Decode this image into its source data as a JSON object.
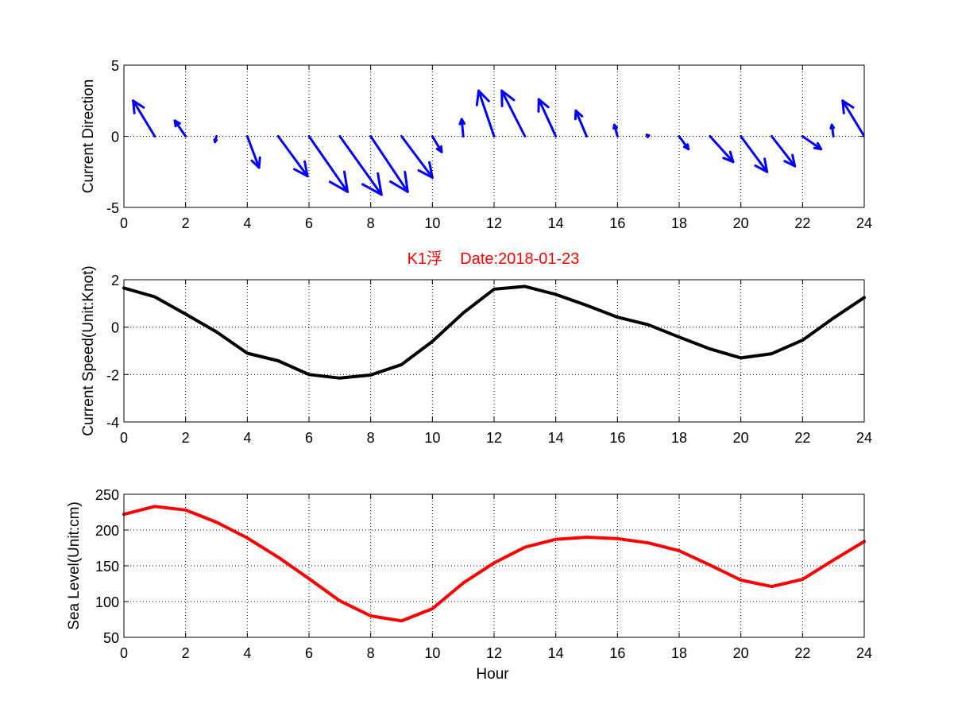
{
  "chart_data": [
    {
      "type": "quiver",
      "ylabel": "Current Direction",
      "xlim": [
        0,
        24
      ],
      "ylim": [
        -5,
        5
      ],
      "xticks": [
        0,
        2,
        4,
        6,
        8,
        10,
        12,
        14,
        16,
        18,
        20,
        22,
        24
      ],
      "yticks": [
        -5,
        0,
        5
      ],
      "grid": true,
      "color": "#0000ff",
      "x": [
        1,
        2,
        3,
        4,
        5,
        6,
        7,
        8,
        9,
        10,
        11,
        12,
        13,
        14,
        15,
        16,
        17,
        18,
        19,
        20,
        21,
        22,
        23,
        24
      ],
      "u": [
        -0.7,
        -0.35,
        -0.05,
        0.38,
        0.95,
        1.25,
        1.35,
        1.2,
        1.0,
        0.3,
        -0.05,
        -0.5,
        -0.75,
        -0.55,
        -0.35,
        -0.1,
        -0.05,
        0.3,
        0.75,
        0.85,
        0.75,
        0.6,
        -0.05,
        -0.7
      ],
      "v": [
        2.5,
        1.1,
        -0.4,
        -2.2,
        -2.8,
        -3.9,
        -4.1,
        -3.9,
        -2.9,
        -1.1,
        1.2,
        3.2,
        3.2,
        2.6,
        1.8,
        0.8,
        0.1,
        -0.9,
        -1.8,
        -2.5,
        -2.1,
        -0.9,
        0.8,
        2.5
      ]
    },
    {
      "type": "line",
      "title": "K1浮    Date:2018-01-23",
      "ylabel": "Current Speed(Unit:Knot)",
      "xlim": [
        0,
        24
      ],
      "ylim": [
        -4,
        2
      ],
      "xticks": [
        0,
        2,
        4,
        6,
        8,
        10,
        12,
        14,
        16,
        18,
        20,
        22,
        24
      ],
      "yticks": [
        -4,
        -2,
        0,
        2
      ],
      "grid": true,
      "color": "#000000",
      "x": [
        0,
        1,
        2,
        3,
        4,
        5,
        6,
        7,
        8,
        9,
        10,
        11,
        12,
        13,
        14,
        15,
        16,
        17,
        18,
        19,
        20,
        21,
        22,
        23,
        24
      ],
      "y": [
        1.65,
        1.28,
        0.55,
        -0.2,
        -1.1,
        -1.42,
        -2.0,
        -2.15,
        -2.02,
        -1.58,
        -0.6,
        0.6,
        1.6,
        1.72,
        1.38,
        0.92,
        0.42,
        0.1,
        -0.42,
        -0.92,
        -1.3,
        -1.12,
        -0.55,
        0.38,
        1.25
      ]
    },
    {
      "type": "line",
      "ylabel": "Sea Level(Unit:cm)",
      "xlabel": "Hour",
      "xlim": [
        0,
        24
      ],
      "ylim": [
        50,
        250
      ],
      "xticks": [
        0,
        2,
        4,
        6,
        8,
        10,
        12,
        14,
        16,
        18,
        20,
        22,
        24
      ],
      "yticks": [
        50,
        100,
        150,
        200,
        250
      ],
      "grid": true,
      "color": "#ff0000",
      "x": [
        0,
        1,
        2,
        3,
        4,
        5,
        6,
        7,
        8,
        9,
        10,
        11,
        12,
        13,
        14,
        15,
        16,
        17,
        18,
        19,
        20,
        21,
        22,
        23,
        24
      ],
      "y": [
        222,
        233,
        228,
        211,
        189,
        162,
        132,
        101,
        80,
        73,
        90,
        126,
        154,
        176,
        187,
        190,
        188,
        182,
        171,
        151,
        130,
        121,
        131,
        158,
        184
      ]
    }
  ]
}
